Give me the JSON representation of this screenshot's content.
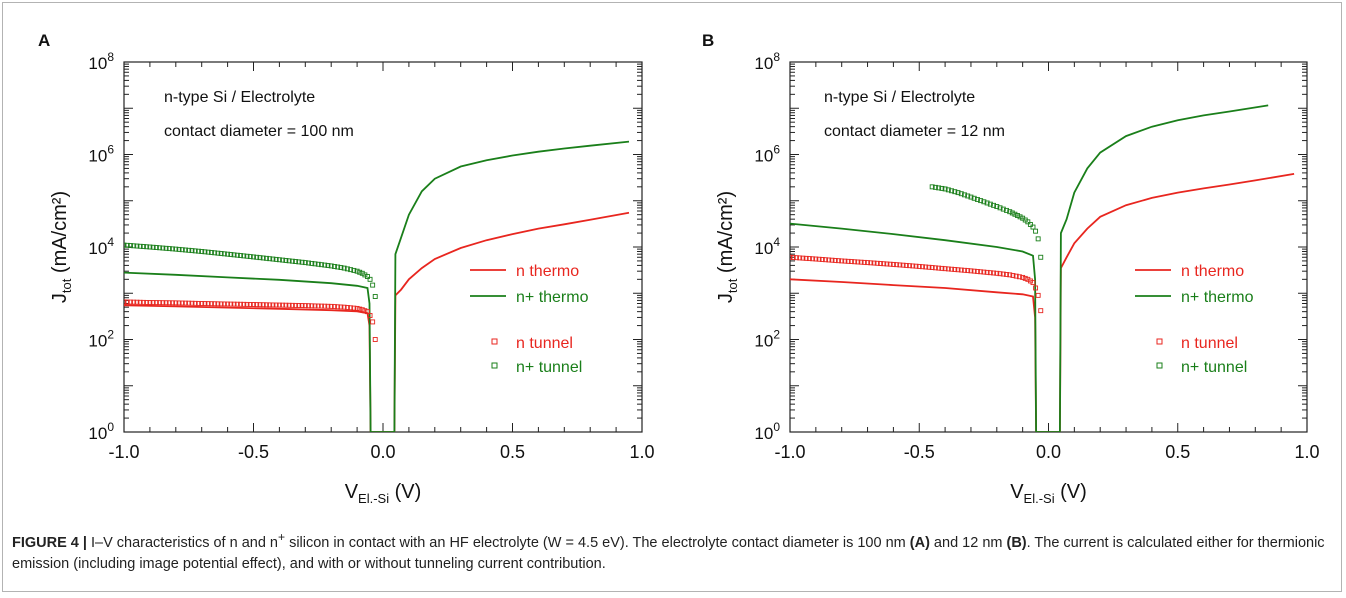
{
  "caption": {
    "figure_label": "FIGURE 4 |",
    "part1": " I–V characteristics of n and n",
    "sup": "+",
    "part2": " silicon in contact with an HF electrolyte (W = 4.5 eV). The electrolyte contact diameter is 100 nm ",
    "ref_a": "(A)",
    "part3": " and 12 nm ",
    "ref_b": "(B)",
    "part4": ". The current is calculated either for thermionic emission (including image potential effect), and with or without tunneling current contribution."
  },
  "colors": {
    "red": "#e8261f",
    "green": "#1a7f1a"
  },
  "chart_data": [
    {
      "panel": "A",
      "type": "line",
      "annotations": [
        "n-type Si / Electrolyte",
        "contact diameter = 100  nm"
      ],
      "xlabel": "V",
      "xlabel_sub": "El.-Si",
      "xlabel_unit": "(V)",
      "ylabel": "J",
      "ylabel_sub": "tot",
      "ylabel_unit": "(mA/cm²)",
      "xlim": [
        -1.0,
        1.0
      ],
      "ylim_log10": [
        0,
        8
      ],
      "yscale": "log",
      "xticks": [
        "-1.0",
        "-0.5",
        "0.0",
        "0.5",
        "1.0"
      ],
      "yticks": [
        0,
        2,
        4,
        6,
        8
      ],
      "ytick_base": "10",
      "legend_placement": "right",
      "series": [
        {
          "name": "n thermo",
          "style": "line",
          "color": "red",
          "points": [
            [
              -1.0,
              550
            ],
            [
              -0.8,
              520
            ],
            [
              -0.6,
              490
            ],
            [
              -0.4,
              460
            ],
            [
              -0.2,
              430
            ],
            [
              -0.1,
              405
            ],
            [
              -0.06,
              370
            ],
            [
              -0.052,
              200
            ],
            [
              -0.048,
              1
            ],
            [
              0.044,
              1
            ],
            [
              0.048,
              900
            ],
            [
              0.07,
              1200
            ],
            [
              0.1,
              2000
            ],
            [
              0.15,
              3500
            ],
            [
              0.2,
              5500
            ],
            [
              0.3,
              9500
            ],
            [
              0.4,
              14000
            ],
            [
              0.5,
              19000
            ],
            [
              0.6,
              25000
            ],
            [
              0.7,
              31000
            ],
            [
              0.8,
              39000
            ],
            [
              0.95,
              55000
            ]
          ]
        },
        {
          "name": "n+ thermo",
          "style": "line",
          "color": "green",
          "points": [
            [
              -1.0,
              2800
            ],
            [
              -0.8,
              2500
            ],
            [
              -0.6,
              2200
            ],
            [
              -0.4,
              1950
            ],
            [
              -0.2,
              1650
            ],
            [
              -0.1,
              1450
            ],
            [
              -0.06,
              1300
            ],
            [
              -0.052,
              600
            ],
            [
              -0.048,
              1
            ],
            [
              0.044,
              1
            ],
            [
              0.048,
              7000
            ],
            [
              0.07,
              16000
            ],
            [
              0.1,
              50000
            ],
            [
              0.15,
              160000
            ],
            [
              0.2,
              300000
            ],
            [
              0.3,
              550000
            ],
            [
              0.4,
              750000
            ],
            [
              0.5,
              950000
            ],
            [
              0.6,
              1150000
            ],
            [
              0.7,
              1350000
            ],
            [
              0.8,
              1550000
            ],
            [
              0.95,
              1900000
            ]
          ]
        },
        {
          "name": "n tunnel",
          "style": "markers",
          "color": "red",
          "points": [
            [
              -1.0,
              650
            ],
            [
              -0.9,
              630
            ],
            [
              -0.8,
              620
            ],
            [
              -0.7,
              600
            ],
            [
              -0.6,
              585
            ],
            [
              -0.5,
              570
            ],
            [
              -0.4,
              555
            ],
            [
              -0.3,
              540
            ],
            [
              -0.2,
              520
            ],
            [
              -0.15,
              500
            ],
            [
              -0.1,
              470
            ],
            [
              -0.08,
              440
            ],
            [
              -0.06,
              400
            ],
            [
              -0.05,
              330
            ],
            [
              -0.04,
              240
            ],
            [
              -0.03,
              100
            ]
          ]
        },
        {
          "name": "n+ tunnel",
          "style": "markers",
          "color": "green",
          "points": [
            [
              -1.0,
              11000
            ],
            [
              -0.9,
              10000
            ],
            [
              -0.8,
              9000
            ],
            [
              -0.7,
              8000
            ],
            [
              -0.6,
              7000
            ],
            [
              -0.5,
              6100
            ],
            [
              -0.4,
              5300
            ],
            [
              -0.3,
              4600
            ],
            [
              -0.2,
              3900
            ],
            [
              -0.15,
              3500
            ],
            [
              -0.1,
              3000
            ],
            [
              -0.08,
              2700
            ],
            [
              -0.06,
              2300
            ],
            [
              -0.05,
              2000
            ],
            [
              -0.04,
              1500
            ],
            [
              -0.03,
              850
            ]
          ]
        }
      ]
    },
    {
      "panel": "B",
      "type": "line",
      "annotations": [
        "n-type Si / Electrolyte",
        "contact diameter = 12  nm"
      ],
      "xlabel": "V",
      "xlabel_sub": "El.-Si",
      "xlabel_unit": "(V)",
      "ylabel": "J",
      "ylabel_sub": "tot",
      "ylabel_unit": "(mA/cm²)",
      "xlim": [
        -1.0,
        1.0
      ],
      "ylim_log10": [
        0,
        8
      ],
      "yscale": "log",
      "xticks": [
        "-1.0",
        "-0.5",
        "0.0",
        "0.5",
        "1.0"
      ],
      "yticks": [
        0,
        2,
        4,
        6,
        8
      ],
      "ytick_base": "10",
      "legend_placement": "right",
      "series": [
        {
          "name": "n thermo",
          "style": "line",
          "color": "red",
          "points": [
            [
              -1.0,
              2000
            ],
            [
              -0.8,
              1750
            ],
            [
              -0.6,
              1500
            ],
            [
              -0.4,
              1300
            ],
            [
              -0.2,
              1050
            ],
            [
              -0.1,
              950
            ],
            [
              -0.06,
              850
            ],
            [
              -0.052,
              300
            ],
            [
              -0.048,
              1
            ],
            [
              0.044,
              1
            ],
            [
              0.048,
              3500
            ],
            [
              0.07,
              6000
            ],
            [
              0.1,
              12000
            ],
            [
              0.15,
              25000
            ],
            [
              0.2,
              45000
            ],
            [
              0.3,
              80000
            ],
            [
              0.4,
              115000
            ],
            [
              0.5,
              150000
            ],
            [
              0.6,
              185000
            ],
            [
              0.7,
              225000
            ],
            [
              0.8,
              275000
            ],
            [
              0.95,
              380000
            ]
          ]
        },
        {
          "name": "n+ thermo",
          "style": "line",
          "color": "green",
          "points": [
            [
              -1.0,
              32000
            ],
            [
              -0.8,
              25000
            ],
            [
              -0.6,
              19000
            ],
            [
              -0.4,
              14000
            ],
            [
              -0.2,
              10000
            ],
            [
              -0.1,
              8000
            ],
            [
              -0.06,
              6500
            ],
            [
              -0.052,
              2000
            ],
            [
              -0.048,
              1
            ],
            [
              0.044,
              1
            ],
            [
              0.048,
              20000
            ],
            [
              0.07,
              40000
            ],
            [
              0.1,
              150000
            ],
            [
              0.15,
              500000
            ],
            [
              0.2,
              1100000
            ],
            [
              0.3,
              2500000
            ],
            [
              0.4,
              4000000
            ],
            [
              0.5,
              5500000
            ],
            [
              0.6,
              7000000
            ],
            [
              0.7,
              8500000
            ],
            [
              0.85,
              11500000
            ]
          ]
        },
        {
          "name": "n tunnel",
          "style": "markers",
          "color": "red",
          "points": [
            [
              -1.0,
              6000
            ],
            [
              -0.9,
              5500
            ],
            [
              -0.8,
              5000
            ],
            [
              -0.7,
              4600
            ],
            [
              -0.6,
              4200
            ],
            [
              -0.5,
              3800
            ],
            [
              -0.4,
              3400
            ],
            [
              -0.3,
              3050
            ],
            [
              -0.2,
              2700
            ],
            [
              -0.15,
              2500
            ],
            [
              -0.1,
              2200
            ],
            [
              -0.08,
              2000
            ],
            [
              -0.06,
              1700
            ],
            [
              -0.05,
              1300
            ],
            [
              -0.04,
              900
            ],
            [
              -0.03,
              420
            ]
          ]
        },
        {
          "name": "n+ tunnel",
          "style": "markers",
          "color": "green",
          "points": [
            [
              -0.45,
              200000
            ],
            [
              -0.4,
              180000
            ],
            [
              -0.35,
              150000
            ],
            [
              -0.3,
              120000
            ],
            [
              -0.25,
              95000
            ],
            [
              -0.2,
              75000
            ],
            [
              -0.15,
              58000
            ],
            [
              -0.12,
              48000
            ],
            [
              -0.1,
              42000
            ],
            [
              -0.08,
              35000
            ],
            [
              -0.06,
              27000
            ],
            [
              -0.05,
              22000
            ],
            [
              -0.04,
              15000
            ],
            [
              -0.03,
              6000
            ]
          ]
        }
      ]
    }
  ]
}
